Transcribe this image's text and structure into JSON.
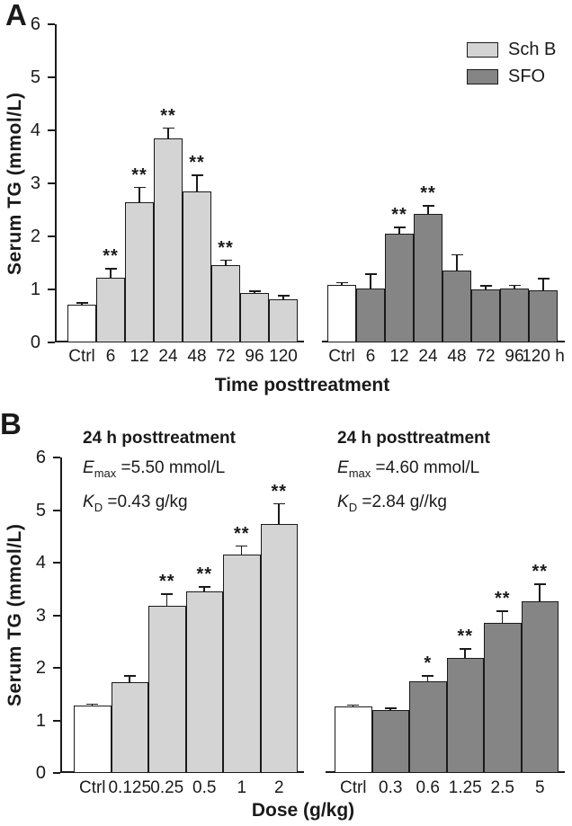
{
  "colors": {
    "sch_b_fill": "#d4d4d4",
    "sfo_fill": "#858585",
    "control_fill": "#ffffff",
    "ink": "#1a1a1a"
  },
  "figure": {
    "panel_a_label": "A",
    "panel_b_label": "B",
    "y_axis_label": "Serum TG (mmol/L)",
    "panel_a_x_title": "Time posttreatment",
    "panel_b_x_title": "Dose (g/kg)",
    "legend": {
      "sch_b": "Sch B",
      "sfo": "SFO",
      "position": "top-right"
    }
  },
  "panel_b_annotations": {
    "sch_b": {
      "title": "24 h posttreatment",
      "emax_symbol": "E",
      "emax_subscript": "max",
      "emax_value": " =5.50 mmol/L",
      "kd_symbol": "K",
      "kd_subscript": "D",
      "kd_value": " =0.43 g/kg"
    },
    "sfo": {
      "title": "24 h posttreatment",
      "emax_symbol": "E",
      "emax_subscript": "max",
      "emax_value": " =4.60 mmol/L",
      "kd_symbol": "K",
      "kd_subscript": "D",
      "kd_value": " =2.84 g//kg"
    }
  },
  "chart_data": [
    {
      "id": "panel-a-sch-b",
      "type": "bar",
      "panel": "A",
      "series": "Sch B",
      "title": "",
      "xlabel": "Time posttreatment",
      "ylabel": "Serum TG (mmol/L)",
      "categories": [
        "Ctrl",
        "6",
        "12",
        "24",
        "48",
        "72",
        "96",
        "120"
      ],
      "values": [
        0.72,
        1.22,
        2.65,
        3.85,
        2.85,
        1.45,
        0.93,
        0.82
      ],
      "errors": [
        0.06,
        0.2,
        0.3,
        0.22,
        0.33,
        0.13,
        0.07,
        0.09
      ],
      "significance": [
        "",
        "**",
        "**",
        "**",
        "**",
        "**",
        "",
        ""
      ],
      "ylim": [
        0,
        6
      ],
      "yticks": [
        0,
        1,
        2,
        3,
        4,
        5,
        6
      ],
      "grid": false,
      "control_index": 0,
      "bar_color": "#d4d4d4",
      "control_color": "#ffffff"
    },
    {
      "id": "panel-a-sfo",
      "type": "bar",
      "panel": "A",
      "series": "SFO",
      "title": "",
      "xlabel": "Time posttreatment",
      "ylabel": "Serum TG (mmol/L)",
      "categories": [
        "Ctrl",
        "6",
        "12",
        "24",
        "48",
        "72",
        "96",
        "120 h"
      ],
      "values": [
        1.08,
        1.02,
        2.05,
        2.43,
        1.35,
        1.0,
        1.01,
        0.98
      ],
      "errors": [
        0.08,
        0.3,
        0.15,
        0.18,
        0.33,
        0.1,
        0.1,
        0.25
      ],
      "significance": [
        "",
        "",
        "**",
        "**",
        "",
        "",
        "",
        ""
      ],
      "ylim": [
        0,
        6
      ],
      "yticks": [
        0,
        1,
        2,
        3,
        4,
        5,
        6
      ],
      "grid": false,
      "control_index": 0,
      "bar_color": "#858585",
      "control_color": "#ffffff"
    },
    {
      "id": "panel-b-sch-b",
      "type": "bar",
      "panel": "B",
      "series": "Sch B",
      "title": "24 h posttreatment",
      "annotation": {
        "emax": "5.50 mmol/L",
        "kd": "0.43 g/kg"
      },
      "xlabel": "Dose (g/kg)",
      "ylabel": "Serum TG (mmol/L)",
      "categories": [
        "Ctrl",
        "0.125",
        "0.25",
        "0.5",
        "1",
        "2"
      ],
      "values": [
        1.28,
        1.72,
        3.18,
        3.45,
        4.15,
        4.73
      ],
      "errors": [
        0.06,
        0.16,
        0.25,
        0.12,
        0.2,
        0.42
      ],
      "significance": [
        "",
        "",
        "**",
        "**",
        "**",
        "**"
      ],
      "ylim": [
        0,
        6
      ],
      "yticks": [
        0,
        1,
        2,
        3,
        4,
        5,
        6
      ],
      "grid": false,
      "control_index": 0,
      "bar_color": "#d4d4d4",
      "control_color": "#ffffff"
    },
    {
      "id": "panel-b-sfo",
      "type": "bar",
      "panel": "B",
      "series": "SFO",
      "title": "24 h posttreatment",
      "annotation": {
        "emax": "4.60 mmol/L",
        "kd": "2.84 g//kg"
      },
      "xlabel": "Dose (g/kg)",
      "ylabel": "Serum TG (mmol/L)",
      "categories": [
        "Ctrl",
        "0.3",
        "0.6",
        "1.25",
        "2.5",
        "5"
      ],
      "values": [
        1.27,
        1.19,
        1.74,
        2.19,
        2.85,
        3.27
      ],
      "errors": [
        0.05,
        0.07,
        0.14,
        0.2,
        0.26,
        0.35
      ],
      "significance": [
        "",
        "",
        "*",
        "**",
        "**",
        "**"
      ],
      "ylim": [
        0,
        6
      ],
      "yticks": [
        0,
        1,
        2,
        3,
        4,
        5,
        6
      ],
      "grid": false,
      "control_index": 0,
      "bar_color": "#858585",
      "control_color": "#ffffff"
    }
  ]
}
